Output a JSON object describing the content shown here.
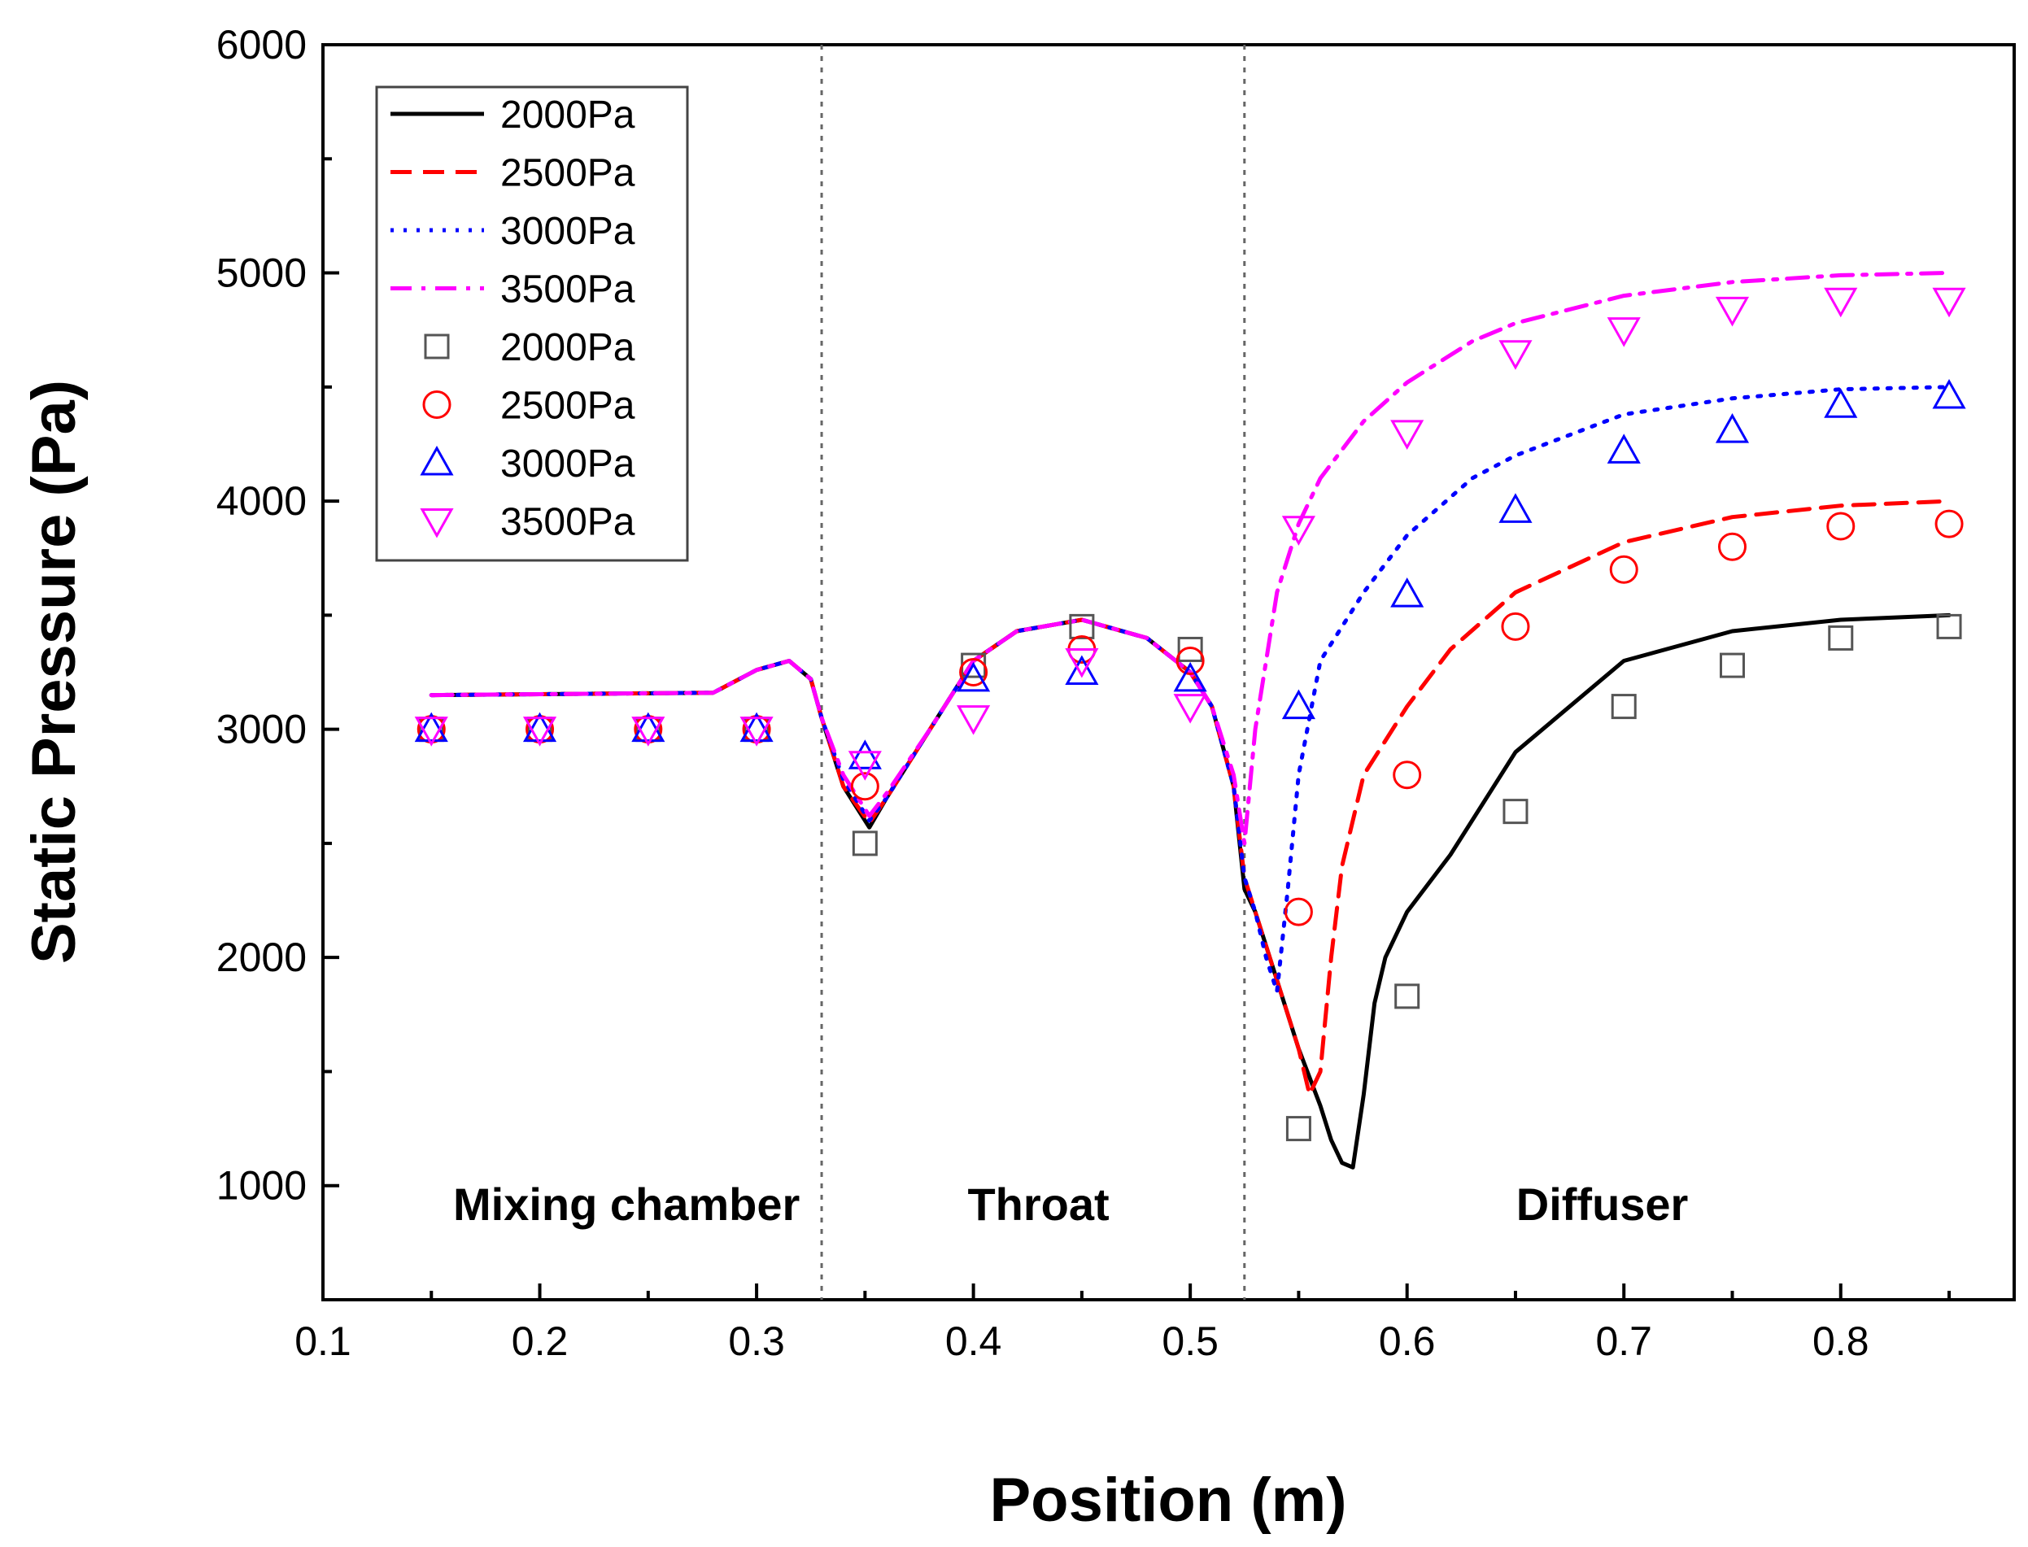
{
  "chart_data": {
    "type": "line",
    "title": "",
    "xlabel": "Position (m)",
    "ylabel": "Static Pressure (Pa)",
    "xlim": [
      0.1,
      0.88
    ],
    "ylim": [
      500,
      6000
    ],
    "x_ticks": [
      0.1,
      0.2,
      0.3,
      0.4,
      0.5,
      0.6,
      0.7,
      0.8
    ],
    "x_tick_labels": [
      "0.1",
      "0.2",
      "0.3",
      "0.4",
      "0.5",
      "0.6",
      "0.7",
      "0.8"
    ],
    "y_ticks": [
      1000,
      2000,
      3000,
      4000,
      5000,
      6000
    ],
    "y_tick_labels": [
      "1000",
      "2000",
      "3000",
      "4000",
      "5000",
      "6000"
    ],
    "grid": false,
    "legend_position": "top-left",
    "region_boundaries": [
      0.33,
      0.525
    ],
    "regions": [
      {
        "label": "Mixing chamber",
        "x": 0.24
      },
      {
        "label": "Throat",
        "x": 0.43
      },
      {
        "label": "Diffuser",
        "x": 0.69
      }
    ],
    "region_label_y": 920,
    "colors": {
      "2000": "#000000",
      "2500": "#ff0000",
      "3000": "#0000ff",
      "3500": "#ff00ff",
      "square": "#555555",
      "boundary": "#666666"
    },
    "series": [
      {
        "name": "2000Pa",
        "kind": "line",
        "color": "#000000",
        "dash": "solid",
        "x": [
          0.15,
          0.28,
          0.3,
          0.315,
          0.325,
          0.33,
          0.34,
          0.352,
          0.36,
          0.38,
          0.4,
          0.42,
          0.45,
          0.48,
          0.5,
          0.51,
          0.52,
          0.525,
          0.53,
          0.54,
          0.55,
          0.56,
          0.565,
          0.57,
          0.575,
          0.58,
          0.585,
          0.59,
          0.6,
          0.62,
          0.65,
          0.7,
          0.75,
          0.8,
          0.85
        ],
        "values": [
          3150,
          3160,
          3260,
          3300,
          3220,
          3050,
          2750,
          2570,
          2700,
          3000,
          3300,
          3430,
          3480,
          3400,
          3250,
          3100,
          2750,
          2300,
          2200,
          1900,
          1600,
          1350,
          1200,
          1100,
          1080,
          1400,
          1800,
          2000,
          2200,
          2450,
          2900,
          3300,
          3430,
          3480,
          3500
        ]
      },
      {
        "name": "2500Pa",
        "kind": "line",
        "color": "#ff0000",
        "dash": "dashed",
        "x": [
          0.15,
          0.28,
          0.3,
          0.315,
          0.325,
          0.33,
          0.34,
          0.352,
          0.36,
          0.38,
          0.4,
          0.42,
          0.45,
          0.48,
          0.5,
          0.51,
          0.52,
          0.525,
          0.53,
          0.54,
          0.55,
          0.555,
          0.56,
          0.565,
          0.57,
          0.58,
          0.6,
          0.62,
          0.65,
          0.7,
          0.75,
          0.8,
          0.85
        ],
        "values": [
          3150,
          3160,
          3260,
          3300,
          3220,
          3050,
          2750,
          2590,
          2700,
          3000,
          3300,
          3430,
          3480,
          3400,
          3250,
          3100,
          2750,
          2350,
          2200,
          1900,
          1600,
          1400,
          1500,
          2000,
          2400,
          2800,
          3100,
          3350,
          3600,
          3820,
          3930,
          3980,
          4000
        ]
      },
      {
        "name": "3000Pa",
        "kind": "line",
        "color": "#0000ff",
        "dash": "dotted",
        "x": [
          0.15,
          0.28,
          0.3,
          0.315,
          0.325,
          0.33,
          0.34,
          0.352,
          0.36,
          0.38,
          0.4,
          0.42,
          0.45,
          0.48,
          0.5,
          0.51,
          0.52,
          0.525,
          0.53,
          0.535,
          0.54,
          0.545,
          0.55,
          0.56,
          0.58,
          0.6,
          0.63,
          0.65,
          0.7,
          0.75,
          0.8,
          0.85
        ],
        "values": [
          3150,
          3160,
          3260,
          3300,
          3220,
          3050,
          2780,
          2600,
          2700,
          3000,
          3300,
          3430,
          3480,
          3400,
          3250,
          3100,
          2750,
          2350,
          2200,
          2000,
          1850,
          2300,
          2800,
          3300,
          3600,
          3850,
          4100,
          4200,
          4380,
          4450,
          4490,
          4500
        ]
      },
      {
        "name": "3500Pa",
        "kind": "line",
        "color": "#ff00ff",
        "dash": "dashdot",
        "x": [
          0.15,
          0.28,
          0.3,
          0.315,
          0.325,
          0.33,
          0.34,
          0.352,
          0.36,
          0.38,
          0.4,
          0.42,
          0.45,
          0.48,
          0.5,
          0.51,
          0.52,
          0.525,
          0.53,
          0.54,
          0.55,
          0.56,
          0.58,
          0.6,
          0.63,
          0.65,
          0.7,
          0.75,
          0.8,
          0.85
        ],
        "values": [
          3150,
          3160,
          3260,
          3300,
          3220,
          3050,
          2800,
          2620,
          2720,
          3000,
          3300,
          3430,
          3480,
          3400,
          3250,
          3100,
          2800,
          2500,
          3000,
          3600,
          3900,
          4100,
          4350,
          4520,
          4700,
          4780,
          4900,
          4960,
          4990,
          5000
        ]
      },
      {
        "name": "2000Pa",
        "kind": "marker",
        "marker": "square",
        "color": "#555555",
        "x": [
          0.15,
          0.2,
          0.25,
          0.3,
          0.35,
          0.4,
          0.45,
          0.5,
          0.55,
          0.6,
          0.65,
          0.7,
          0.75,
          0.8,
          0.85
        ],
        "values": [
          3000,
          3000,
          3000,
          3000,
          2500,
          3280,
          3450,
          3350,
          1250,
          1830,
          2640,
          3100,
          3280,
          3400,
          3450
        ]
      },
      {
        "name": "2500Pa",
        "kind": "marker",
        "marker": "circle",
        "color": "#ff0000",
        "x": [
          0.15,
          0.2,
          0.25,
          0.3,
          0.35,
          0.4,
          0.45,
          0.5,
          0.55,
          0.6,
          0.65,
          0.7,
          0.75,
          0.8,
          0.85
        ],
        "values": [
          3000,
          3000,
          3000,
          3000,
          2750,
          3250,
          3350,
          3300,
          2200,
          2800,
          3450,
          3700,
          3800,
          3890,
          3900
        ]
      },
      {
        "name": "3000Pa",
        "kind": "marker",
        "marker": "triangle-up",
        "color": "#0000ff",
        "x": [
          0.15,
          0.2,
          0.25,
          0.3,
          0.35,
          0.4,
          0.45,
          0.5,
          0.55,
          0.6,
          0.65,
          0.7,
          0.75,
          0.8,
          0.85
        ],
        "values": [
          3000,
          3000,
          3000,
          3000,
          2880,
          3220,
          3250,
          3220,
          3100,
          3590,
          3960,
          4220,
          4310,
          4420,
          4460
        ]
      },
      {
        "name": "3500Pa",
        "kind": "marker",
        "marker": "triangle-down",
        "color": "#ff00ff",
        "x": [
          0.15,
          0.2,
          0.25,
          0.3,
          0.35,
          0.4,
          0.45,
          0.5,
          0.55,
          0.6,
          0.65,
          0.7,
          0.75,
          0.8,
          0.85
        ],
        "values": [
          3000,
          3000,
          3000,
          3000,
          2850,
          3050,
          3300,
          3100,
          3880,
          4300,
          4650,
          4750,
          4840,
          4880,
          4880
        ]
      }
    ]
  }
}
